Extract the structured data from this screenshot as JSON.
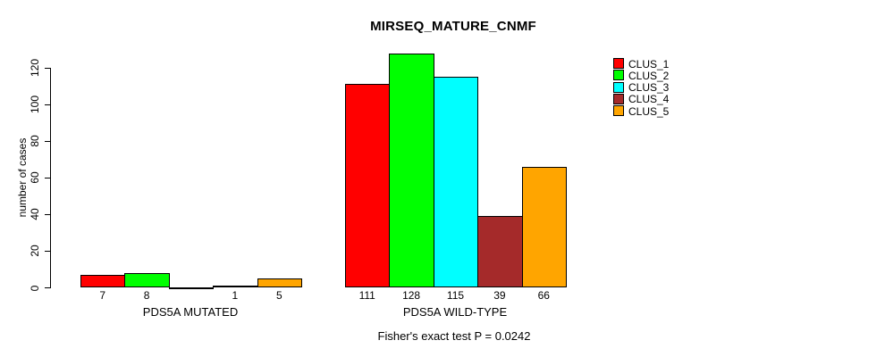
{
  "chart_data": {
    "type": "bar",
    "title": "MIRSEQ_MATURE_CNMF",
    "ylabel": "number of cases",
    "xlabel": "",
    "categories": [
      "PDS5A MUTATED",
      "PDS5A WILD-TYPE"
    ],
    "series": [
      {
        "name": "CLUS_1",
        "color": "#FF0000",
        "values": [
          7,
          111
        ]
      },
      {
        "name": "CLUS_2",
        "color": "#00FF00",
        "values": [
          8,
          128
        ]
      },
      {
        "name": "CLUS_3",
        "color": "#00FFFF",
        "values": [
          0,
          115
        ]
      },
      {
        "name": "CLUS_4",
        "color": "#A52A2A",
        "values": [
          1,
          39
        ]
      },
      {
        "name": "CLUS_5",
        "color": "#FFA500",
        "values": [
          5,
          66
        ]
      }
    ],
    "yticks": [
      0,
      20,
      40,
      60,
      80,
      100,
      120
    ],
    "ylim": [
      0,
      128
    ],
    "grid": false,
    "legend_position": "top-right",
    "bar_value_labels_shown": true,
    "zero_value_bars_drawn_as_flat_line": true,
    "annotation": "Fisher's exact test P = 0.0242"
  },
  "text_color": "#000000",
  "background_color": "#FFFFFF",
  "axis_color": "#000000"
}
